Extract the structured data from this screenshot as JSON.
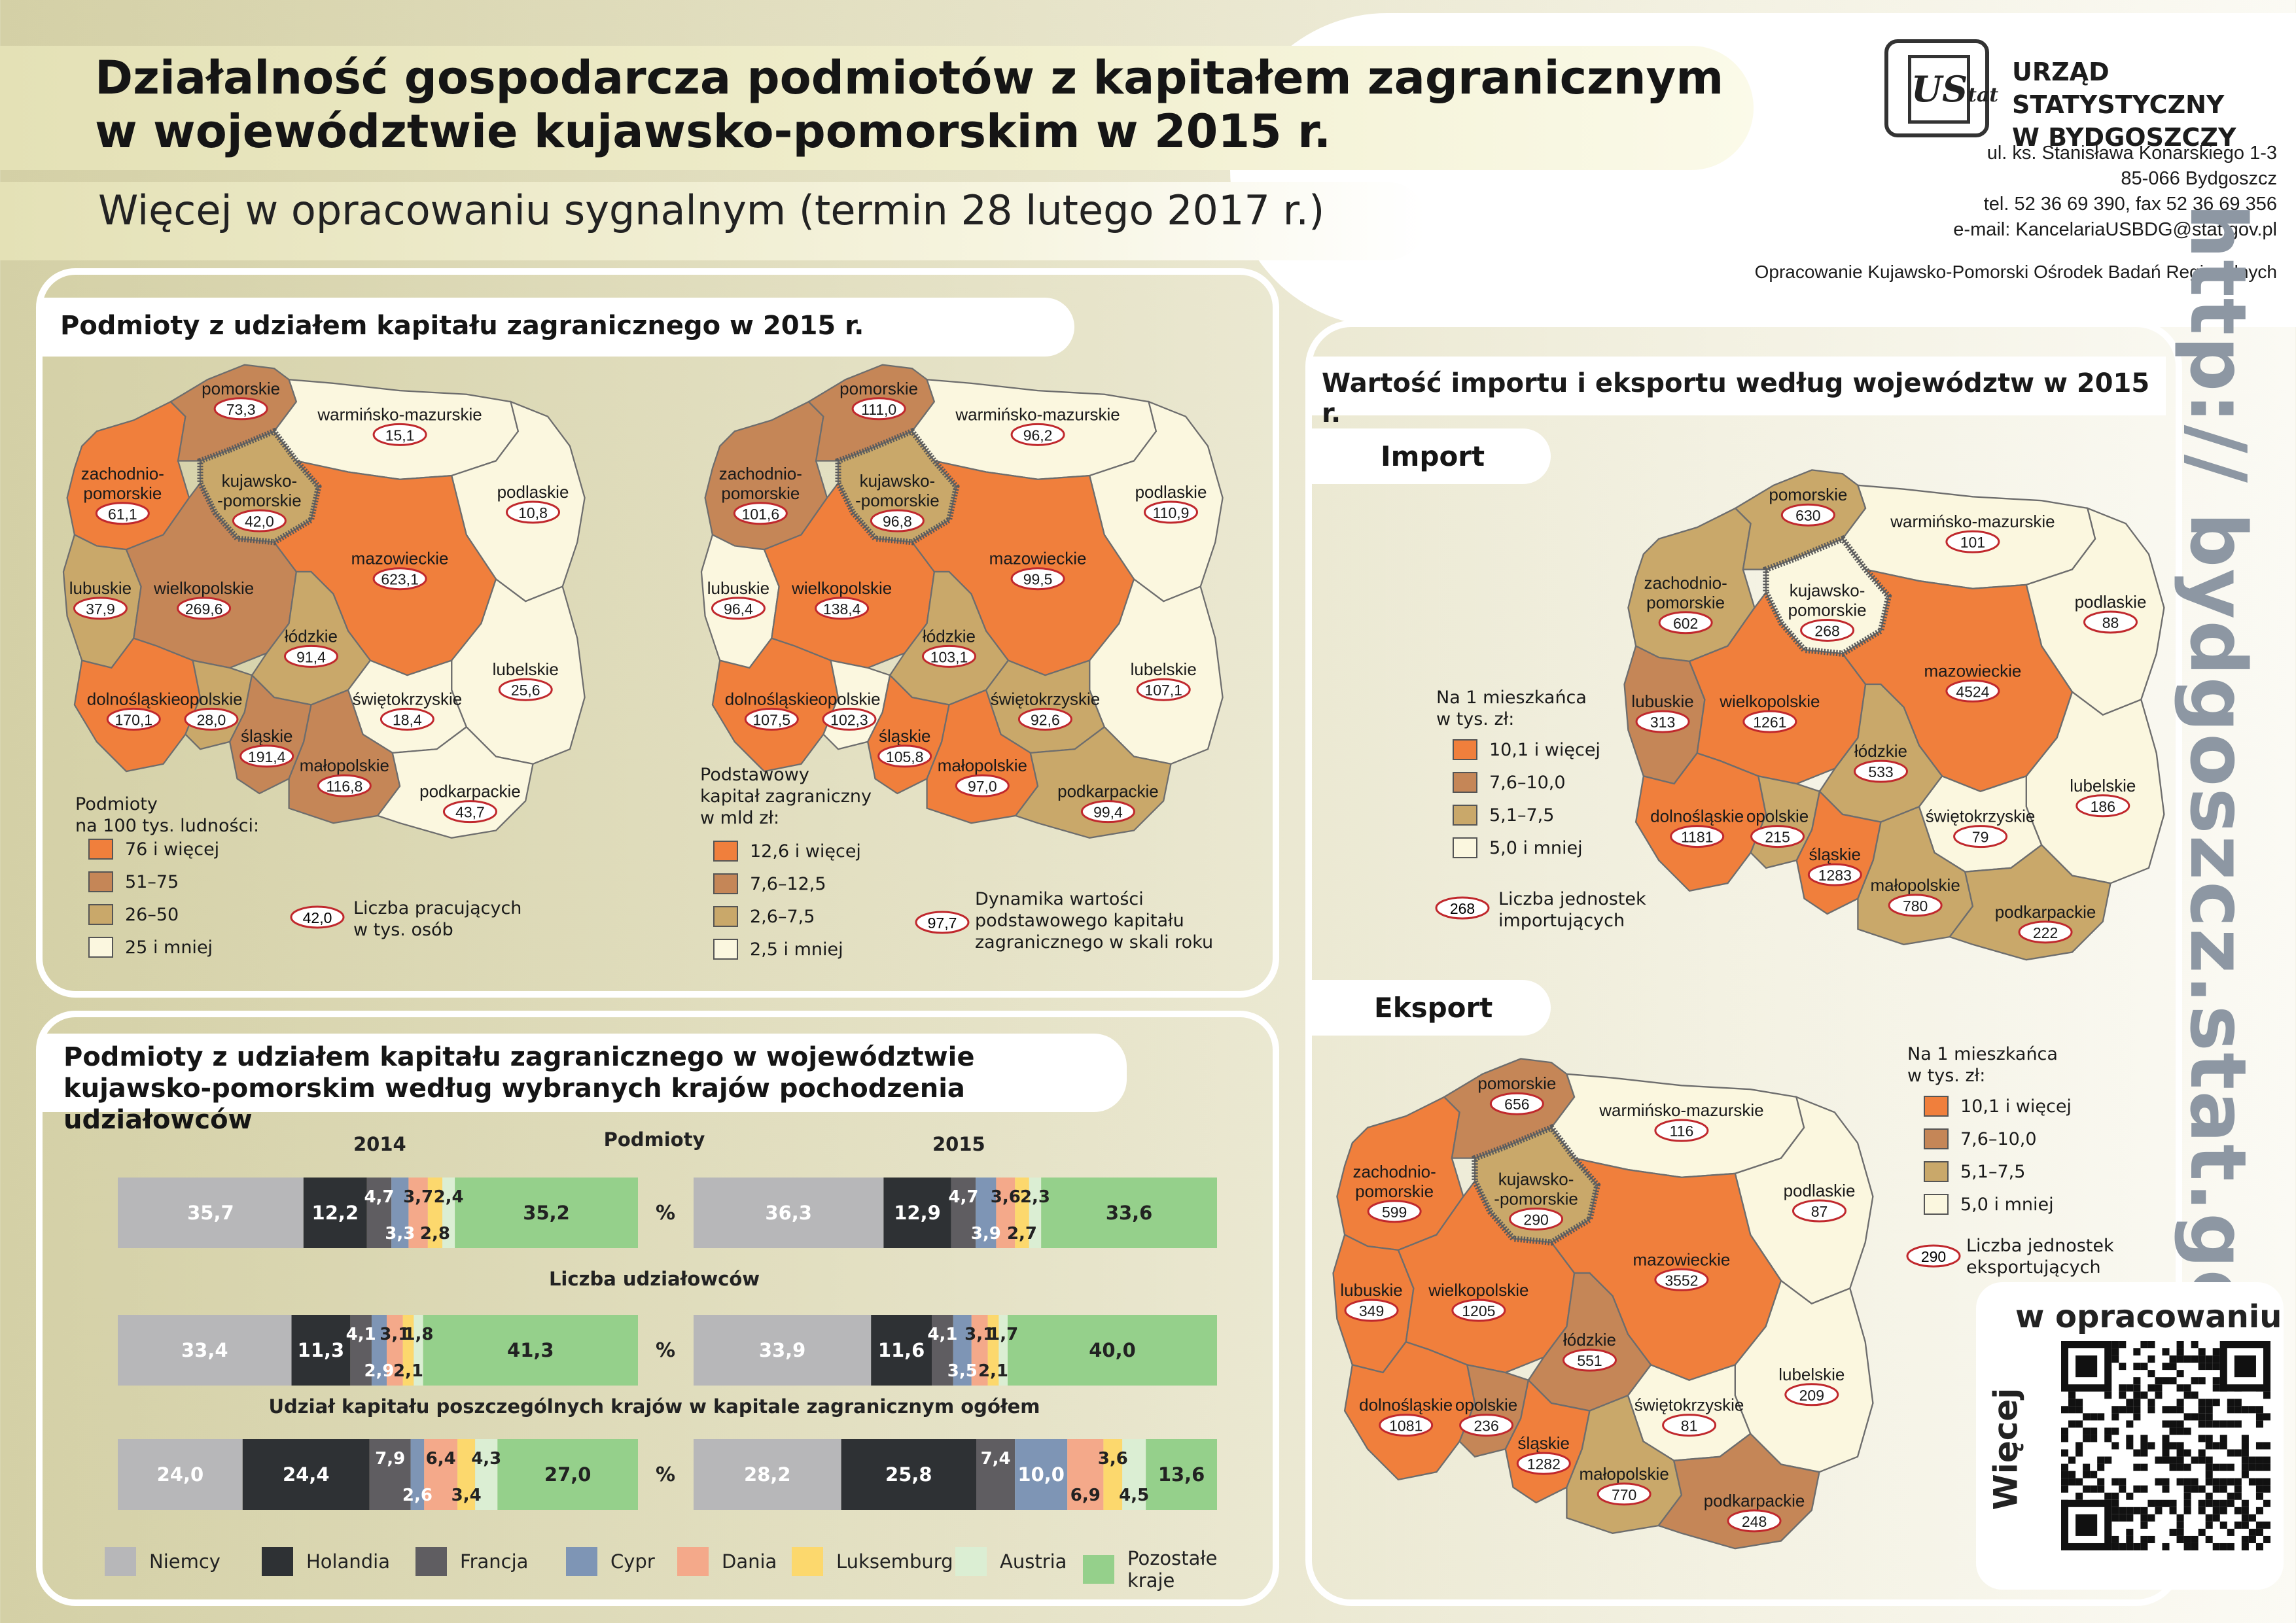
{
  "header": {
    "title_line1": "Działalność gospodarcza podmiotów z kapitałem zagranicznym",
    "title_line2": "w województwie kujawsko-pomorskim w 2015 r.",
    "subtitle": "Więcej w opracowaniu sygnalnym (termin 28 lutego 2017 r.)",
    "logo_text": "US",
    "logo_sub": "tat",
    "office_line1": "URZĄD STATYSTYCZNY",
    "office_line2": "W BYDGOSZCZY",
    "address_line1": "ul. ks. Stanisława Konarskiego 1-3",
    "address_line2": "85-066 Bydgoszcz",
    "address_line3": "tel. 52 36 69 390, fax 52 36 69 356",
    "address_line4": "e-mail: KancelariaUSBDG@stat.gov.pl",
    "elaboration": "Opracowanie Kujawsko-Pomorski Ośrodek Badań Regionalnych"
  },
  "side": {
    "url": "http:// bydgoszcz.stat.gov.pl",
    "qr_top": "w opracowaniu",
    "qr_side": "Więcej"
  },
  "colors": {
    "c1": "#f07f3c",
    "c2": "#c58657",
    "c3": "#c9a86a",
    "c4": "#fbf7df",
    "border": "#6d6d6d",
    "kp_border": "#5a5a5a",
    "label_ring": "#c0282d"
  },
  "panel1": {
    "title": "Podmioty z udziałem kapitału zagranicznego w 2015 r.",
    "map1": {
      "legend_title1": "Podmioty",
      "legend_title2": "na 100 tys. ludności:",
      "legend": [
        "76 i więcej",
        "51–75",
        "26–50",
        "25 i mniej"
      ],
      "ring_value": "42,0",
      "ring_text1": "Liczba pracujących",
      "ring_text2": "w tys. osób",
      "regions": [
        {
          "id": "zp",
          "name1": "zachodnio-",
          "name2": "pomorskie",
          "value": "61,1",
          "cls": 1
        },
        {
          "id": "pm",
          "name1": "pomorskie",
          "name2": "",
          "value": "73,3",
          "cls": 2
        },
        {
          "id": "wm",
          "name1": "warmińsko-mazurskie",
          "name2": "",
          "value": "15,1",
          "cls": 4
        },
        {
          "id": "pd",
          "name1": "podlaskie",
          "name2": "",
          "value": "10,8",
          "cls": 4
        },
        {
          "id": "kp",
          "name1": "kujawsko-",
          "name2": "-pomorskie",
          "value": "42,0",
          "cls": 3
        },
        {
          "id": "lb",
          "name1": "lubuskie",
          "name2": "",
          "value": "37,9",
          "cls": 3
        },
        {
          "id": "wp",
          "name1": "wielkopolskie",
          "name2": "",
          "value": "269,6",
          "cls": 2
        },
        {
          "id": "mz",
          "name1": "mazowieckie",
          "name2": "",
          "value": "623,1",
          "cls": 1
        },
        {
          "id": "ld",
          "name1": "łódzkie",
          "name2": "",
          "value": "91,4",
          "cls": 3
        },
        {
          "id": "lu",
          "name1": "lubelskie",
          "name2": "",
          "value": "25,6",
          "cls": 4
        },
        {
          "id": "ds",
          "name1": "dolnośląskie",
          "name2": "",
          "value": "170,1",
          "cls": 1
        },
        {
          "id": "sk",
          "name1": "świętokrzyskie",
          "name2": "",
          "value": "18,4",
          "cls": 4
        },
        {
          "id": "op",
          "name1": "opolskie",
          "name2": "",
          "value": "28,0",
          "cls": 3
        },
        {
          "id": "sl",
          "name1": "śląskie",
          "name2": "",
          "value": "191,4",
          "cls": 2
        },
        {
          "id": "mp",
          "name1": "małopolskie",
          "name2": "",
          "value": "116,8",
          "cls": 2
        },
        {
          "id": "pk",
          "name1": "podkarpackie",
          "name2": "",
          "value": "43,7",
          "cls": 4
        }
      ]
    },
    "map2": {
      "legend_title1": "Podstawowy",
      "legend_title2": "kapitał zagraniczny",
      "legend_title3": "w mld zł:",
      "legend": [
        "12,6 i więcej",
        "7,6–12,5",
        "2,6–7,5",
        "2,5 i mniej"
      ],
      "ring_value": "97,7",
      "ring_text1": "Dynamika wartości",
      "ring_text2": "podstawowego kapitału",
      "ring_text3": "zagranicznego w skali roku",
      "regions": [
        {
          "id": "zp",
          "name1": "zachodnio-",
          "name2": "pomorskie",
          "value": "101,6",
          "cls": 2
        },
        {
          "id": "pm",
          "name1": "pomorskie",
          "name2": "",
          "value": "111,0",
          "cls": 2
        },
        {
          "id": "wm",
          "name1": "warmińsko-mazurskie",
          "name2": "",
          "value": "96,2",
          "cls": 4
        },
        {
          "id": "pd",
          "name1": "podlaskie",
          "name2": "",
          "value": "110,9",
          "cls": 4
        },
        {
          "id": "kp",
          "name1": "kujawsko-",
          "name2": "-pomorskie",
          "value": "96,8",
          "cls": 3
        },
        {
          "id": "lb",
          "name1": "lubuskie",
          "name2": "",
          "value": "96,4",
          "cls": 4
        },
        {
          "id": "wp",
          "name1": "wielkopolskie",
          "name2": "",
          "value": "138,4",
          "cls": 1
        },
        {
          "id": "mz",
          "name1": "mazowieckie",
          "name2": "",
          "value": "99,5",
          "cls": 1
        },
        {
          "id": "ld",
          "name1": "łódzkie",
          "name2": "",
          "value": "103,1",
          "cls": 3
        },
        {
          "id": "lu",
          "name1": "lubelskie",
          "name2": "",
          "value": "107,1",
          "cls": 4
        },
        {
          "id": "ds",
          "name1": "dolnośląskie",
          "name2": "",
          "value": "107,5",
          "cls": 1
        },
        {
          "id": "sk",
          "name1": "świętokrzyskie",
          "name2": "",
          "value": "92,6",
          "cls": 3
        },
        {
          "id": "op",
          "name1": "opolskie",
          "name2": "",
          "value": "102,3",
          "cls": 4
        },
        {
          "id": "sl",
          "name1": "śląskie",
          "name2": "",
          "value": "105,8",
          "cls": 1
        },
        {
          "id": "mp",
          "name1": "małopolskie",
          "name2": "",
          "value": "97,0",
          "cls": 1
        },
        {
          "id": "pk",
          "name1": "podkarpackie",
          "name2": "",
          "value": "99,4",
          "cls": 3
        }
      ]
    }
  },
  "panel3": {
    "title": "Wartość importu i eksportu według województw w 2015 r.",
    "import": {
      "label": "Import",
      "legend_title1": "Na 1 mieszkańca",
      "legend_title2": "w tys. zł:",
      "legend": [
        "10,1 i więcej",
        "7,6–10,0",
        "5,1–7,5",
        "5,0 i mniej"
      ],
      "ring_value": "268",
      "ring_text1": "Liczba jednostek",
      "ring_text2": "importujących",
      "regions": [
        {
          "id": "zp",
          "name1": "zachodnio-",
          "name2": "pomorskie",
          "value": "602",
          "cls": 3
        },
        {
          "id": "pm",
          "name1": "pomorskie",
          "name2": "",
          "value": "630",
          "cls": 3
        },
        {
          "id": "wm",
          "name1": "warmińsko-mazurskie",
          "name2": "",
          "value": "101",
          "cls": 4
        },
        {
          "id": "pd",
          "name1": "podlaskie",
          "name2": "",
          "value": "88",
          "cls": 4
        },
        {
          "id": "kp",
          "name1": "kujawsko-",
          "name2": "pomorskie",
          "value": "268",
          "cls": 4
        },
        {
          "id": "lb",
          "name1": "lubuskie",
          "name2": "",
          "value": "313",
          "cls": 2
        },
        {
          "id": "wp",
          "name1": "wielkopolskie",
          "name2": "",
          "value": "1261",
          "cls": 1
        },
        {
          "id": "mz",
          "name1": "mazowieckie",
          "name2": "",
          "value": "4524",
          "cls": 1
        },
        {
          "id": "ld",
          "name1": "łódzkie",
          "name2": "",
          "value": "533",
          "cls": 3
        },
        {
          "id": "lu",
          "name1": "lubelskie",
          "name2": "",
          "value": "186",
          "cls": 4
        },
        {
          "id": "ds",
          "name1": "dolnośląskie",
          "name2": "",
          "value": "1181",
          "cls": 1
        },
        {
          "id": "sk",
          "name1": "świętokrzyskie",
          "name2": "",
          "value": "79",
          "cls": 4
        },
        {
          "id": "op",
          "name1": "opolskie",
          "name2": "",
          "value": "215",
          "cls": 3
        },
        {
          "id": "sl",
          "name1": "śląskie",
          "name2": "",
          "value": "1283",
          "cls": 1
        },
        {
          "id": "mp",
          "name1": "małopolskie",
          "name2": "",
          "value": "780",
          "cls": 3
        },
        {
          "id": "pk",
          "name1": "podkarpackie",
          "name2": "",
          "value": "222",
          "cls": 3
        }
      ]
    },
    "export": {
      "label": "Eksport",
      "legend_title1": "Na 1 mieszkańca",
      "legend_title2": "w tys. zł:",
      "legend": [
        "10,1 i więcej",
        "7,6–10,0",
        "5,1–7,5",
        "5,0 i mniej"
      ],
      "ring_value": "290",
      "ring_text1": "Liczba jednostek",
      "ring_text2": "eksportujących",
      "regions": [
        {
          "id": "zp",
          "name1": "zachodnio-",
          "name2": "pomorskie",
          "value": "599",
          "cls": 1
        },
        {
          "id": "pm",
          "name1": "pomorskie",
          "name2": "",
          "value": "656",
          "cls": 2
        },
        {
          "id": "wm",
          "name1": "warmińsko-mazurskie",
          "name2": "",
          "value": "116",
          "cls": 4
        },
        {
          "id": "pd",
          "name1": "podlaskie",
          "name2": "",
          "value": "87",
          "cls": 4
        },
        {
          "id": "kp",
          "name1": "kujawsko-",
          "name2": "-pomorskie",
          "value": "290",
          "cls": 3
        },
        {
          "id": "lb",
          "name1": "lubuskie",
          "name2": "",
          "value": "349",
          "cls": 1
        },
        {
          "id": "wp",
          "name1": "wielkopolskie",
          "name2": "",
          "value": "1205",
          "cls": 1
        },
        {
          "id": "mz",
          "name1": "mazowieckie",
          "name2": "",
          "value": "3552",
          "cls": 1
        },
        {
          "id": "ld",
          "name1": "łódzkie",
          "name2": "",
          "value": "551",
          "cls": 2
        },
        {
          "id": "lu",
          "name1": "lubelskie",
          "name2": "",
          "value": "209",
          "cls": 4
        },
        {
          "id": "ds",
          "name1": "dolnośląskie",
          "name2": "",
          "value": "1081",
          "cls": 1
        },
        {
          "id": "sk",
          "name1": "świętokrzyskie",
          "name2": "",
          "value": "81",
          "cls": 4
        },
        {
          "id": "op",
          "name1": "opolskie",
          "name2": "",
          "value": "236",
          "cls": 2
        },
        {
          "id": "sl",
          "name1": "śląskie",
          "name2": "",
          "value": "1282",
          "cls": 1
        },
        {
          "id": "mp",
          "name1": "małopolskie",
          "name2": "",
          "value": "770",
          "cls": 3
        },
        {
          "id": "pk",
          "name1": "podkarpackie",
          "name2": "",
          "value": "248",
          "cls": 2
        }
      ]
    }
  },
  "chart_data": {
    "type": "bar",
    "title_line1": "Podmioty z udziałem kapitału zagranicznego w województwie",
    "title_line2": "kujawsko-pomorskim według wybranych krajów pochodzenia udziałowców",
    "years": [
      "2014",
      "2015"
    ],
    "pct_label": "%",
    "series_names": [
      "Niemcy",
      "Holandia",
      "Francja",
      "Cypr",
      "Dania",
      "Luksemburg",
      "Austria",
      "Pozostałe kraje"
    ],
    "series_colors": [
      "#b7b7b9",
      "#2e3134",
      "#5f5d61",
      "#7e95b5",
      "#f4a98a",
      "#fcd86d",
      "#dbeed3",
      "#95d08b"
    ],
    "groups": [
      {
        "caption": "Podmioty",
        "values_2014": [
          35.7,
          12.2,
          4.7,
          3.3,
          3.7,
          2.8,
          2.4,
          35.2
        ],
        "labels_2014": [
          "35,7",
          "12,2",
          "4,7",
          "3,3",
          "3,7",
          "2,8",
          "2,4",
          "35,2"
        ],
        "values_2015": [
          36.3,
          12.9,
          4.7,
          3.9,
          3.6,
          2.7,
          2.3,
          33.6
        ],
        "labels_2015": [
          "36,3",
          "12,9",
          "4,7",
          "3,9",
          "3,6",
          "2,7",
          "2,3",
          "33,6"
        ]
      },
      {
        "caption": "Liczba udziałowców",
        "values_2014": [
          33.4,
          11.3,
          4.1,
          2.9,
          3.1,
          2.1,
          1.8,
          41.3
        ],
        "labels_2014": [
          "33,4",
          "11,3",
          "4,1",
          "2,9",
          "3,1",
          "2,1",
          "1,8",
          "41,3"
        ],
        "values_2015": [
          33.9,
          11.6,
          4.1,
          3.5,
          3.1,
          2.1,
          1.7,
          40.0
        ],
        "labels_2015": [
          "33,9",
          "11,6",
          "4,1",
          "3,5",
          "3,1",
          "2,1",
          "1,7",
          "40,0"
        ]
      },
      {
        "caption": "Udział kapitału poszczególnych krajów w kapitale zagranicznym ogółem",
        "values_2014": [
          24.0,
          24.4,
          7.9,
          2.6,
          6.4,
          3.4,
          4.3,
          27.0
        ],
        "labels_2014": [
          "24,0",
          "24,4",
          "7,9",
          "2,6",
          "6,4",
          "3,4",
          "4,3",
          "27,0"
        ],
        "values_2015": [
          28.2,
          25.8,
          7.4,
          10.0,
          6.9,
          3.6,
          4.5,
          13.6
        ],
        "labels_2015": [
          "28,2",
          "25,8",
          "7,4",
          "10,0",
          "6,9",
          "3,6",
          "4,5",
          "13,6"
        ]
      }
    ]
  }
}
